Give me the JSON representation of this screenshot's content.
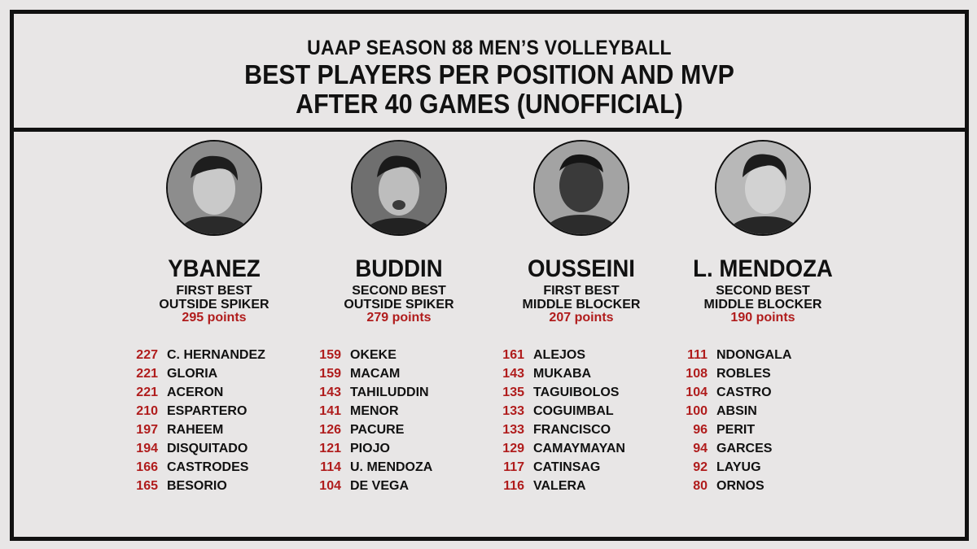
{
  "header": {
    "line1": "UAAP SEASON 88 MEN’S VOLLEYBALL",
    "line2": "BEST PLAYERS PER POSITION AND MVP",
    "line3": "AFTER 40 GAMES (UNOFFICIAL)"
  },
  "colors": {
    "accent": "#b01c1c",
    "ink": "#111111",
    "background": "#e8e6e6"
  },
  "players": [
    {
      "name": "YBANEZ",
      "award_line1": "FIRST BEST",
      "award_line2": "OUTSIDE SPIKER",
      "points": "295 points",
      "rankings": [
        {
          "pts": "227",
          "name": "C. HERNANDEZ"
        },
        {
          "pts": "221",
          "name": "GLORIA"
        },
        {
          "pts": "221",
          "name": "ACERON"
        },
        {
          "pts": "210",
          "name": "ESPARTERO"
        },
        {
          "pts": "197",
          "name": "RAHEEM"
        },
        {
          "pts": "194",
          "name": "DISQUITADO"
        },
        {
          "pts": "166",
          "name": "CASTRODES"
        },
        {
          "pts": "165",
          "name": "BESORIO"
        }
      ]
    },
    {
      "name": "BUDDIN",
      "award_line1": "SECOND BEST",
      "award_line2": "OUTSIDE SPIKER",
      "points": "279 points",
      "rankings": [
        {
          "pts": "159",
          "name": "OKEKE"
        },
        {
          "pts": "159",
          "name": "MACAM"
        },
        {
          "pts": "143",
          "name": "TAHILUDDIN"
        },
        {
          "pts": "141",
          "name": "MENOR"
        },
        {
          "pts": "126",
          "name": "PACURE"
        },
        {
          "pts": "121",
          "name": "PIOJO"
        },
        {
          "pts": "114",
          "name": "U. MENDOZA"
        },
        {
          "pts": "104",
          "name": "DE VEGA"
        }
      ]
    },
    {
      "name": "OUSSEINI",
      "award_line1": "FIRST BEST",
      "award_line2": "MIDDLE BLOCKER",
      "points": "207 points",
      "rankings": [
        {
          "pts": "161",
          "name": "ALEJOS"
        },
        {
          "pts": "143",
          "name": "MUKABA"
        },
        {
          "pts": "135",
          "name": "TAGUIBOLOS"
        },
        {
          "pts": "133",
          "name": "COGUIMBAL"
        },
        {
          "pts": "133",
          "name": "FRANCISCO"
        },
        {
          "pts": "129",
          "name": "CAMAYMAYAN"
        },
        {
          "pts": "117",
          "name": "CATINSAG"
        },
        {
          "pts": "116",
          "name": "VALERA"
        }
      ]
    },
    {
      "name": "L. MENDOZA",
      "award_line1": "SECOND BEST",
      "award_line2": "MIDDLE BLOCKER",
      "points": "190 points",
      "rankings": [
        {
          "pts": "111",
          "name": "NDONGALA"
        },
        {
          "pts": "108",
          "name": "ROBLES"
        },
        {
          "pts": "104",
          "name": "CASTRO"
        },
        {
          "pts": "100",
          "name": "ABSIN"
        },
        {
          "pts": "96",
          "name": "PERIT"
        },
        {
          "pts": "94",
          "name": "GARCES"
        },
        {
          "pts": "92",
          "name": "LAYUG"
        },
        {
          "pts": "80",
          "name": "ORNOS"
        }
      ]
    }
  ]
}
